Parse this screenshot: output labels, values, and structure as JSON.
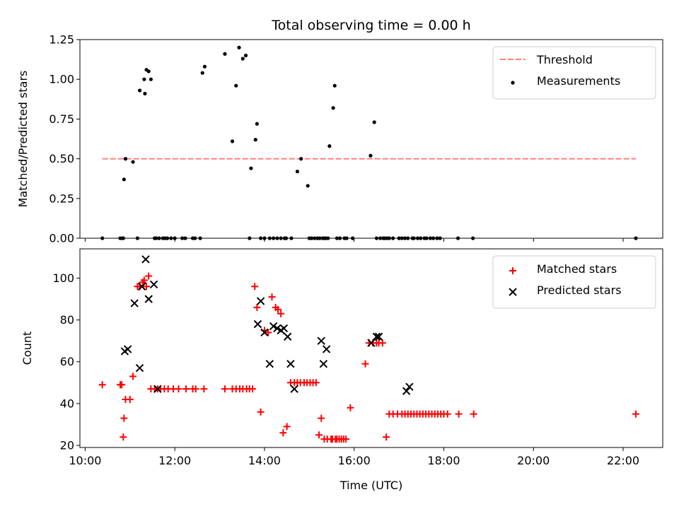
{
  "chart_data": [
    {
      "type": "scatter",
      "panel": "top",
      "title": "Total observing time = 0.00 h",
      "xlabel": "",
      "ylabel": "Matched/Predicted stars",
      "ylim": [
        0,
        1.25
      ],
      "yticks": [
        0,
        0.25,
        0.5,
        0.75,
        1.0,
        1.25
      ],
      "ytick_labels": [
        "0.00",
        "0.25",
        "0.50",
        "0.75",
        "1.00",
        "1.25"
      ],
      "xlim": [
        "09:53",
        "22:53"
      ],
      "legend_position": "upper right",
      "grid": false,
      "threshold": {
        "name": "Threshold",
        "value": 0.5,
        "x_range": [
          "10:23",
          "22:17"
        ],
        "color": "#ff7f7f",
        "style": "dashed"
      },
      "series": [
        {
          "name": "Measurements",
          "marker": "dot",
          "color": "#000000",
          "x": [
            "10:23",
            "10:47",
            "10:50",
            "10:51",
            "10:52",
            "10:54",
            "11:04",
            "11:10",
            "11:13",
            "11:19",
            "11:20",
            "11:22",
            "11:25",
            "11:28",
            "11:33",
            "11:35",
            "11:39",
            "11:44",
            "11:47",
            "11:50",
            "11:55",
            "12:00",
            "12:10",
            "12:14",
            "12:24",
            "12:27",
            "12:34",
            "12:37",
            "12:40",
            "13:07",
            "13:17",
            "13:22",
            "13:26",
            "13:31",
            "13:35",
            "13:40",
            "13:42",
            "13:48",
            "13:50",
            "13:55",
            "14:00",
            "14:07",
            "14:12",
            "14:17",
            "14:22",
            "14:27",
            "14:29",
            "14:36",
            "14:44",
            "14:49",
            "14:58",
            "15:00",
            "15:03",
            "15:07",
            "15:11",
            "15:14",
            "15:18",
            "15:20",
            "15:22",
            "15:25",
            "15:27",
            "15:32",
            "15:34",
            "15:37",
            "15:41",
            "15:47",
            "15:50",
            "15:58",
            "16:22",
            "16:27",
            "16:30",
            "16:35",
            "16:39",
            "16:41",
            "16:44",
            "16:47",
            "16:52",
            "17:00",
            "17:04",
            "17:08",
            "17:12",
            "17:18",
            "17:20",
            "17:25",
            "17:29",
            "17:34",
            "17:37",
            "17:42",
            "17:46",
            "17:51",
            "17:55",
            "18:19",
            "18:39",
            "22:17"
          ],
          "y": [
            0,
            0,
            0,
            0,
            0.37,
            0.5,
            0.48,
            0,
            0.93,
            1.0,
            0.91,
            1.06,
            1.05,
            1.0,
            0,
            0,
            0,
            0,
            0,
            0,
            0,
            0,
            0,
            0,
            0,
            0,
            0,
            1.04,
            1.08,
            1.16,
            0.61,
            0.96,
            1.2,
            1.13,
            1.15,
            0,
            0.44,
            0.62,
            0.72,
            0,
            0,
            0,
            0,
            0,
            0,
            0,
            0,
            0,
            0.42,
            0.5,
            0.33,
            0,
            0,
            0,
            0,
            0,
            0,
            0,
            0,
            0,
            0.58,
            0.82,
            0.96,
            0,
            0,
            0,
            0,
            0,
            0.52,
            0.73,
            0,
            0,
            0,
            0,
            0,
            0,
            0,
            0,
            0,
            0,
            0,
            0,
            0,
            0,
            0,
            0,
            0,
            0,
            0,
            0,
            0,
            0,
            0,
            0
          ]
        }
      ]
    },
    {
      "type": "scatter",
      "panel": "bottom",
      "xlabel": "Time (UTC)",
      "ylabel": "Count",
      "ylim": [
        19,
        114
      ],
      "yticks": [
        20,
        40,
        60,
        80,
        100
      ],
      "ytick_labels": [
        "20",
        "40",
        "60",
        "80",
        "100"
      ],
      "xlim": [
        "09:53",
        "22:53"
      ],
      "xticks": [
        "10:00",
        "12:00",
        "14:00",
        "16:00",
        "18:00",
        "20:00",
        "22:00"
      ],
      "xtick_labels": [
        "10:00",
        "12:00",
        "14:00",
        "16:00",
        "18:00",
        "20:00",
        "22:00"
      ],
      "legend_position": "upper right",
      "grid": false,
      "series": [
        {
          "name": "Matched stars",
          "marker": "plus",
          "color": "#ff0000",
          "x": [
            "10:23",
            "10:47",
            "10:49",
            "10:51",
            "10:52",
            "10:54",
            "11:00",
            "11:04",
            "11:10",
            "11:13",
            "11:17",
            "11:19",
            "11:22",
            "11:25",
            "11:28",
            "11:33",
            "11:37",
            "11:41",
            "11:46",
            "11:51",
            "11:58",
            "12:05",
            "12:15",
            "12:24",
            "12:28",
            "12:39",
            "13:07",
            "13:17",
            "13:22",
            "13:27",
            "13:31",
            "13:36",
            "13:40",
            "13:44",
            "13:47",
            "13:50",
            "13:55",
            "14:00",
            "14:05",
            "14:10",
            "14:15",
            "14:18",
            "14:22",
            "14:25",
            "14:30",
            "14:35",
            "14:40",
            "14:44",
            "14:48",
            "14:53",
            "14:57",
            "15:01",
            "15:05",
            "15:09",
            "15:13",
            "15:16",
            "15:20",
            "15:24",
            "15:29",
            "15:31",
            "15:35",
            "15:37",
            "15:40",
            "15:43",
            "15:46",
            "15:49",
            "15:55",
            "16:15",
            "16:20",
            "16:25",
            "16:30",
            "16:33",
            "16:38",
            "16:43",
            "16:47",
            "16:52",
            "16:58",
            "17:04",
            "17:08",
            "17:12",
            "17:16",
            "17:20",
            "17:24",
            "17:28",
            "17:32",
            "17:36",
            "17:40",
            "17:44",
            "17:48",
            "17:52",
            "17:56",
            "18:00",
            "18:05",
            "18:20",
            "18:40",
            "22:17"
          ],
          "y": [
            49,
            49,
            49,
            24,
            33,
            42,
            42,
            53,
            96,
            96,
            98,
            99,
            96,
            101,
            47,
            47,
            47,
            47,
            47,
            47,
            47,
            47,
            47,
            47,
            47,
            47,
            47,
            47,
            47,
            47,
            47,
            47,
            47,
            47,
            96,
            86,
            36,
            75,
            74,
            91,
            86,
            85,
            83,
            26,
            29,
            50,
            50,
            50,
            50,
            50,
            50,
            50,
            50,
            50,
            25,
            33,
            23,
            23,
            23,
            23,
            23,
            23,
            23,
            23,
            23,
            23,
            38,
            59,
            69,
            69,
            69,
            69,
            69,
            24,
            35,
            35,
            35,
            35,
            35,
            35,
            35,
            35,
            35,
            35,
            35,
            35,
            35,
            35,
            35,
            35,
            35,
            35,
            35,
            35,
            35,
            35
          ]
        },
        {
          "name": "Predicted stars",
          "marker": "x",
          "color": "#000000",
          "x": [
            "10:53",
            "10:57",
            "11:06",
            "11:13",
            "11:16",
            "11:21",
            "11:25",
            "11:32",
            "11:37",
            "13:51",
            "13:55",
            "14:00",
            "14:07",
            "14:12",
            "14:17",
            "14:22",
            "14:26",
            "14:31",
            "14:35",
            "14:40",
            "15:16",
            "15:19",
            "15:23",
            "16:23",
            "16:30",
            "16:33",
            "17:10",
            "17:14"
          ],
          "y": [
            65,
            66,
            88,
            57,
            96,
            109,
            90,
            97,
            47,
            78,
            89,
            74,
            59,
            77,
            76,
            75,
            76,
            72,
            59,
            47,
            70,
            59,
            66,
            69,
            72,
            72,
            46,
            48
          ]
        }
      ]
    }
  ]
}
